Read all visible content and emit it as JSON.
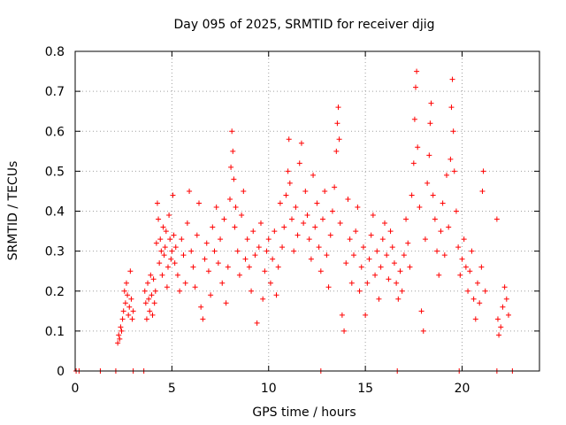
{
  "chart_data": {
    "type": "scatter",
    "title": "Day 095 of 2025, SRMTID for receiver djig",
    "xlabel": "GPS time / hours",
    "ylabel": "SRMTID / TECUs",
    "xlim": [
      0,
      24
    ],
    "ylim": [
      0,
      0.8
    ],
    "xticks": [
      0,
      5,
      10,
      15,
      20
    ],
    "yticks": [
      0,
      0.1,
      0.2,
      0.3,
      0.4,
      0.5,
      0.6,
      0.7,
      0.8
    ],
    "xtick_labels": [
      "0",
      "5",
      "10",
      "15",
      "20"
    ],
    "ytick_labels": [
      "0",
      "0.1",
      "0.2",
      "0.3",
      "0.4",
      "0.5",
      "0.6",
      "0.7",
      "0.8"
    ],
    "grid": true,
    "marker": "+",
    "color": "#ff0000",
    "series": [
      {
        "name": "SRMTID",
        "points": [
          [
            0.05,
            0
          ],
          [
            0.2,
            0
          ],
          [
            1.3,
            0
          ],
          [
            2.1,
            0
          ],
          [
            3.0,
            0
          ],
          [
            3.55,
            0
          ],
          [
            12.7,
            0
          ],
          [
            16.65,
            0
          ],
          [
            19.85,
            0
          ],
          [
            21.8,
            0
          ],
          [
            22.6,
            0
          ],
          [
            2.2,
            0.07
          ],
          [
            2.25,
            0.09
          ],
          [
            2.3,
            0.08
          ],
          [
            2.35,
            0.11
          ],
          [
            2.4,
            0.1
          ],
          [
            2.45,
            0.13
          ],
          [
            2.5,
            0.15
          ],
          [
            2.55,
            0.2
          ],
          [
            2.6,
            0.17
          ],
          [
            2.65,
            0.22
          ],
          [
            2.7,
            0.19
          ],
          [
            2.75,
            0.14
          ],
          [
            2.8,
            0.16
          ],
          [
            2.85,
            0.25
          ],
          [
            2.9,
            0.18
          ],
          [
            2.95,
            0.13
          ],
          [
            3.0,
            0.15
          ],
          [
            3.6,
            0.2
          ],
          [
            3.65,
            0.17
          ],
          [
            3.7,
            0.13
          ],
          [
            3.75,
            0.22
          ],
          [
            3.8,
            0.18
          ],
          [
            3.85,
            0.15
          ],
          [
            3.9,
            0.24
          ],
          [
            3.95,
            0.19
          ],
          [
            4.0,
            0.14
          ],
          [
            4.05,
            0.23
          ],
          [
            4.1,
            0.17
          ],
          [
            4.15,
            0.2
          ],
          [
            4.2,
            0.32
          ],
          [
            4.25,
            0.42
          ],
          [
            4.3,
            0.38
          ],
          [
            4.35,
            0.27
          ],
          [
            4.4,
            0.33
          ],
          [
            4.45,
            0.3
          ],
          [
            4.5,
            0.24
          ],
          [
            4.55,
            0.36
          ],
          [
            4.6,
            0.29
          ],
          [
            4.65,
            0.31
          ],
          [
            4.7,
            0.35
          ],
          [
            4.75,
            0.21
          ],
          [
            4.8,
            0.26
          ],
          [
            4.85,
            0.39
          ],
          [
            4.9,
            0.33
          ],
          [
            4.95,
            0.28
          ],
          [
            5.0,
            0.3
          ],
          [
            5.05,
            0.44
          ],
          [
            5.1,
            0.34
          ],
          [
            5.15,
            0.27
          ],
          [
            5.2,
            0.31
          ],
          [
            5.3,
            0.24
          ],
          [
            5.4,
            0.2
          ],
          [
            5.5,
            0.33
          ],
          [
            5.6,
            0.29
          ],
          [
            5.7,
            0.22
          ],
          [
            5.8,
            0.37
          ],
          [
            5.9,
            0.45
          ],
          [
            6.0,
            0.3
          ],
          [
            6.1,
            0.26
          ],
          [
            6.2,
            0.21
          ],
          [
            6.3,
            0.34
          ],
          [
            6.4,
            0.42
          ],
          [
            6.5,
            0.16
          ],
          [
            6.6,
            0.13
          ],
          [
            6.7,
            0.28
          ],
          [
            6.8,
            0.32
          ],
          [
            6.9,
            0.25
          ],
          [
            7.0,
            0.19
          ],
          [
            7.1,
            0.36
          ],
          [
            7.2,
            0.3
          ],
          [
            7.3,
            0.41
          ],
          [
            7.4,
            0.27
          ],
          [
            7.5,
            0.33
          ],
          [
            7.6,
            0.22
          ],
          [
            7.7,
            0.38
          ],
          [
            7.8,
            0.17
          ],
          [
            7.9,
            0.26
          ],
          [
            8.0,
            0.43
          ],
          [
            8.05,
            0.51
          ],
          [
            8.1,
            0.6
          ],
          [
            8.15,
            0.55
          ],
          [
            8.2,
            0.48
          ],
          [
            8.25,
            0.36
          ],
          [
            8.3,
            0.41
          ],
          [
            8.4,
            0.3
          ],
          [
            8.5,
            0.24
          ],
          [
            8.6,
            0.39
          ],
          [
            8.7,
            0.45
          ],
          [
            8.8,
            0.28
          ],
          [
            8.9,
            0.33
          ],
          [
            9.0,
            0.26
          ],
          [
            9.1,
            0.2
          ],
          [
            9.2,
            0.35
          ],
          [
            9.3,
            0.29
          ],
          [
            9.4,
            0.12
          ],
          [
            9.5,
            0.31
          ],
          [
            9.6,
            0.37
          ],
          [
            9.7,
            0.18
          ],
          [
            9.8,
            0.25
          ],
          [
            9.9,
            0.3
          ],
          [
            10.0,
            0.33
          ],
          [
            10.1,
            0.22
          ],
          [
            10.2,
            0.28
          ],
          [
            10.3,
            0.35
          ],
          [
            10.4,
            0.19
          ],
          [
            10.5,
            0.26
          ],
          [
            10.6,
            0.42
          ],
          [
            10.7,
            0.31
          ],
          [
            10.8,
            0.36
          ],
          [
            10.9,
            0.44
          ],
          [
            11.0,
            0.5
          ],
          [
            11.05,
            0.58
          ],
          [
            11.1,
            0.47
          ],
          [
            11.2,
            0.38
          ],
          [
            11.3,
            0.3
          ],
          [
            11.4,
            0.41
          ],
          [
            11.5,
            0.34
          ],
          [
            11.6,
            0.52
          ],
          [
            11.7,
            0.57
          ],
          [
            11.8,
            0.37
          ],
          [
            11.9,
            0.45
          ],
          [
            12.0,
            0.39
          ],
          [
            12.1,
            0.33
          ],
          [
            12.2,
            0.28
          ],
          [
            12.3,
            0.49
          ],
          [
            12.4,
            0.36
          ],
          [
            12.5,
            0.42
          ],
          [
            12.6,
            0.31
          ],
          [
            12.7,
            0.25
          ],
          [
            12.8,
            0.38
          ],
          [
            12.9,
            0.45
          ],
          [
            13.0,
            0.29
          ],
          [
            13.1,
            0.21
          ],
          [
            13.2,
            0.34
          ],
          [
            13.3,
            0.4
          ],
          [
            13.4,
            0.46
          ],
          [
            13.5,
            0.55
          ],
          [
            13.55,
            0.62
          ],
          [
            13.6,
            0.66
          ],
          [
            13.65,
            0.58
          ],
          [
            13.7,
            0.37
          ],
          [
            13.8,
            0.14
          ],
          [
            13.9,
            0.1
          ],
          [
            14.0,
            0.27
          ],
          [
            14.1,
            0.43
          ],
          [
            14.2,
            0.33
          ],
          [
            14.3,
            0.22
          ],
          [
            14.4,
            0.29
          ],
          [
            14.5,
            0.35
          ],
          [
            14.6,
            0.41
          ],
          [
            14.7,
            0.2
          ],
          [
            14.8,
            0.26
          ],
          [
            14.9,
            0.31
          ],
          [
            15.0,
            0.14
          ],
          [
            15.1,
            0.22
          ],
          [
            15.2,
            0.28
          ],
          [
            15.3,
            0.34
          ],
          [
            15.4,
            0.39
          ],
          [
            15.5,
            0.24
          ],
          [
            15.6,
            0.3
          ],
          [
            15.7,
            0.18
          ],
          [
            15.8,
            0.26
          ],
          [
            15.9,
            0.33
          ],
          [
            16.0,
            0.37
          ],
          [
            16.1,
            0.29
          ],
          [
            16.2,
            0.23
          ],
          [
            16.3,
            0.35
          ],
          [
            16.4,
            0.31
          ],
          [
            16.5,
            0.27
          ],
          [
            16.6,
            0.22
          ],
          [
            16.7,
            0.18
          ],
          [
            16.8,
            0.25
          ],
          [
            16.9,
            0.2
          ],
          [
            17.0,
            0.29
          ],
          [
            17.1,
            0.38
          ],
          [
            17.2,
            0.32
          ],
          [
            17.3,
            0.26
          ],
          [
            17.4,
            0.44
          ],
          [
            17.5,
            0.52
          ],
          [
            17.55,
            0.63
          ],
          [
            17.6,
            0.71
          ],
          [
            17.65,
            0.75
          ],
          [
            17.7,
            0.56
          ],
          [
            17.8,
            0.41
          ],
          [
            17.9,
            0.15
          ],
          [
            18.0,
            0.1
          ],
          [
            18.1,
            0.33
          ],
          [
            18.2,
            0.47
          ],
          [
            18.3,
            0.54
          ],
          [
            18.35,
            0.62
          ],
          [
            18.4,
            0.67
          ],
          [
            18.5,
            0.44
          ],
          [
            18.6,
            0.38
          ],
          [
            18.7,
            0.3
          ],
          [
            18.8,
            0.24
          ],
          [
            18.9,
            0.35
          ],
          [
            19.0,
            0.42
          ],
          [
            19.1,
            0.29
          ],
          [
            19.2,
            0.49
          ],
          [
            19.3,
            0.36
          ],
          [
            19.4,
            0.53
          ],
          [
            19.45,
            0.66
          ],
          [
            19.5,
            0.73
          ],
          [
            19.55,
            0.6
          ],
          [
            19.6,
            0.5
          ],
          [
            19.7,
            0.4
          ],
          [
            19.8,
            0.31
          ],
          [
            19.9,
            0.24
          ],
          [
            20.0,
            0.28
          ],
          [
            20.1,
            0.33
          ],
          [
            20.2,
            0.26
          ],
          [
            20.3,
            0.2
          ],
          [
            20.4,
            0.25
          ],
          [
            20.5,
            0.3
          ],
          [
            20.6,
            0.18
          ],
          [
            20.7,
            0.13
          ],
          [
            20.8,
            0.22
          ],
          [
            20.9,
            0.17
          ],
          [
            21.0,
            0.26
          ],
          [
            21.05,
            0.45
          ],
          [
            21.1,
            0.5
          ],
          [
            21.2,
            0.2
          ],
          [
            21.8,
            0.38
          ],
          [
            21.85,
            0.13
          ],
          [
            21.9,
            0.09
          ],
          [
            22.0,
            0.11
          ],
          [
            22.1,
            0.16
          ],
          [
            22.2,
            0.21
          ],
          [
            22.3,
            0.18
          ],
          [
            22.4,
            0.14
          ]
        ]
      }
    ]
  }
}
